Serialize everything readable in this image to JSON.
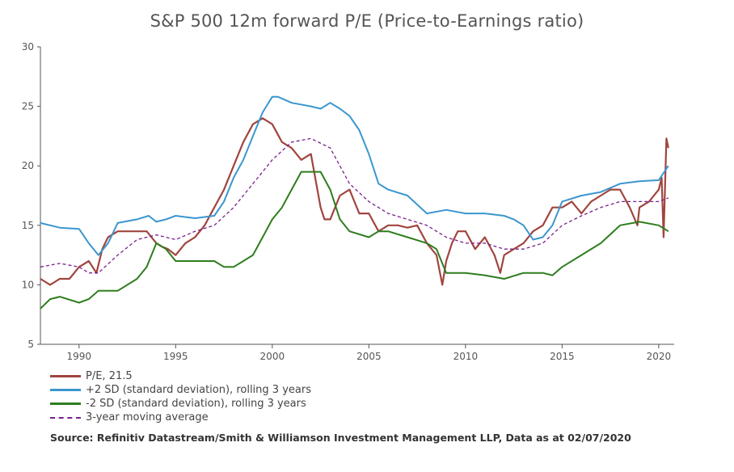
{
  "colors": {
    "pe": "#a0453f",
    "upper": "#3b96cf",
    "lower": "#2e7d1e",
    "avg": "#7b1f8e",
    "axis": "#555555"
  },
  "chart_data": {
    "type": "line",
    "title": "S&P 500 12m forward P/E (Price-to-Earnings ratio)",
    "xlim": [
      1988,
      2020.8
    ],
    "ylim": [
      5,
      30
    ],
    "x_ticks": [
      1990,
      1995,
      2000,
      2005,
      2010,
      2015,
      2020
    ],
    "y_ticks": [
      5,
      10,
      15,
      20,
      25,
      30
    ],
    "grid": false,
    "legend_position": "bottom-left",
    "series": [
      {
        "name": "P/E, 21.5",
        "style": "solid",
        "color_key": "pe",
        "x": [
          1988.0,
          1988.5,
          1989.0,
          1989.5,
          1990.0,
          1990.5,
          1990.9,
          1991.2,
          1991.5,
          1992.0,
          1992.5,
          1993.0,
          1993.5,
          1994.0,
          1994.3,
          1994.6,
          1995.0,
          1995.5,
          1996.0,
          1996.5,
          1997.0,
          1997.5,
          1998.0,
          1998.5,
          1999.0,
          1999.5,
          2000.0,
          2000.5,
          2001.0,
          2001.5,
          2002.0,
          2002.5,
          2002.7,
          2003.0,
          2003.5,
          2004.0,
          2004.5,
          2005.0,
          2005.5,
          2006.0,
          2006.5,
          2007.0,
          2007.5,
          2008.0,
          2008.5,
          2008.8,
          2008.9,
          2009.0,
          2009.3,
          2009.6,
          2010.0,
          2010.5,
          2011.0,
          2011.5,
          2011.8,
          2012.0,
          2012.5,
          2013.0,
          2013.5,
          2014.0,
          2014.5,
          2015.0,
          2015.5,
          2016.0,
          2016.5,
          2017.0,
          2017.5,
          2018.0,
          2018.5,
          2018.9,
          2019.0,
          2019.5,
          2020.0,
          2020.15,
          2020.25,
          2020.4,
          2020.5
        ],
        "values": [
          10.5,
          10.0,
          10.5,
          10.5,
          11.5,
          12.0,
          11.0,
          13.0,
          14.0,
          14.5,
          14.5,
          14.5,
          14.5,
          13.5,
          13.2,
          13.0,
          12.5,
          13.5,
          14.0,
          15.0,
          16.5,
          18.0,
          20.0,
          22.0,
          23.5,
          24.0,
          23.5,
          22.0,
          21.5,
          20.5,
          21.0,
          16.5,
          15.5,
          15.5,
          17.5,
          18.0,
          16.0,
          16.0,
          14.5,
          15.0,
          15.0,
          14.8,
          15.0,
          13.5,
          12.5,
          10.0,
          11.0,
          12.0,
          13.5,
          14.5,
          14.5,
          13.0,
          14.0,
          12.5,
          11.0,
          12.5,
          13.0,
          13.5,
          14.5,
          15.0,
          16.5,
          16.5,
          17.0,
          16.0,
          17.0,
          17.5,
          18.0,
          18.0,
          16.5,
          15.0,
          16.5,
          17.0,
          18.0,
          19.0,
          14.0,
          22.3,
          21.5
        ]
      },
      {
        "name": "+2 SD (standard deviation), rolling 3 years",
        "style": "solid",
        "color_key": "upper",
        "x": [
          1988.0,
          1989.0,
          1990.0,
          1990.5,
          1991.0,
          1991.5,
          1992.0,
          1993.0,
          1993.6,
          1994.0,
          1994.5,
          1995.0,
          1996.0,
          1997.0,
          1997.5,
          1998.0,
          1998.5,
          1999.0,
          1999.5,
          2000.0,
          2000.3,
          2001.0,
          2002.0,
          2002.5,
          2003.0,
          2003.5,
          2004.0,
          2004.5,
          2005.0,
          2005.5,
          2006.0,
          2007.0,
          2008.0,
          2009.0,
          2010.0,
          2011.0,
          2012.0,
          2012.5,
          2013.0,
          2013.5,
          2014.0,
          2014.5,
          2015.0,
          2016.0,
          2017.0,
          2018.0,
          2019.0,
          2020.0,
          2020.5
        ],
        "values": [
          15.2,
          14.8,
          14.7,
          13.5,
          12.5,
          13.5,
          15.2,
          15.5,
          15.8,
          15.3,
          15.5,
          15.8,
          15.6,
          15.8,
          17.0,
          19.0,
          20.5,
          22.5,
          24.5,
          25.8,
          25.8,
          25.3,
          25.0,
          24.8,
          25.3,
          24.8,
          24.2,
          23.0,
          21.0,
          18.5,
          18.0,
          17.5,
          16.0,
          16.3,
          16.0,
          16.0,
          15.8,
          15.5,
          15.0,
          13.8,
          14.0,
          15.0,
          17.0,
          17.5,
          17.8,
          18.5,
          18.7,
          18.8,
          20.0
        ]
      },
      {
        "name": "-2 SD (standard deviation), rolling 3 years",
        "style": "solid",
        "color_key": "lower",
        "x": [
          1988.0,
          1988.5,
          1989.0,
          1990.0,
          1990.5,
          1991.0,
          1991.5,
          1992.0,
          1993.0,
          1993.5,
          1994.0,
          1994.5,
          1995.0,
          1996.0,
          1997.0,
          1997.5,
          1998.0,
          1998.5,
          1999.0,
          1999.5,
          2000.0,
          2000.5,
          2001.0,
          2001.5,
          2002.0,
          2002.5,
          2003.0,
          2003.5,
          2004.0,
          2005.0,
          2005.5,
          2006.0,
          2007.0,
          2008.0,
          2008.5,
          2009.0,
          2010.0,
          2011.0,
          2012.0,
          2013.0,
          2014.0,
          2014.5,
          2015.0,
          2016.0,
          2017.0,
          2018.0,
          2019.0,
          2020.0,
          2020.5
        ],
        "values": [
          8.0,
          8.8,
          9.0,
          8.5,
          8.8,
          9.5,
          9.5,
          9.5,
          10.5,
          11.5,
          13.5,
          13.0,
          12.0,
          12.0,
          12.0,
          11.5,
          11.5,
          12.0,
          12.5,
          14.0,
          15.5,
          16.5,
          18.0,
          19.5,
          19.5,
          19.5,
          18.0,
          15.5,
          14.5,
          14.0,
          14.5,
          14.5,
          14.0,
          13.5,
          13.0,
          11.0,
          11.0,
          10.8,
          10.5,
          11.0,
          11.0,
          10.8,
          11.5,
          12.5,
          13.5,
          15.0,
          15.3,
          15.0,
          14.5
        ]
      },
      {
        "name": "3-year moving average",
        "style": "dashed",
        "color_key": "avg",
        "x": [
          1988.0,
          1989.0,
          1990.0,
          1990.5,
          1991.0,
          1992.0,
          1993.0,
          1994.0,
          1995.0,
          1996.0,
          1997.0,
          1998.0,
          1999.0,
          2000.0,
          2001.0,
          2002.0,
          2003.0,
          2004.0,
          2005.0,
          2006.0,
          2007.0,
          2008.0,
          2009.0,
          2010.0,
          2011.0,
          2012.0,
          2013.0,
          2014.0,
          2015.0,
          2016.0,
          2017.0,
          2018.0,
          2019.0,
          2020.0,
          2020.5
        ],
        "values": [
          11.5,
          11.8,
          11.5,
          11.0,
          11.0,
          12.5,
          13.8,
          14.2,
          13.8,
          14.5,
          15.0,
          16.5,
          18.5,
          20.5,
          22.0,
          22.3,
          21.5,
          18.5,
          17.0,
          16.0,
          15.5,
          15.0,
          14.0,
          13.5,
          13.5,
          13.0,
          13.0,
          13.5,
          15.0,
          15.8,
          16.5,
          17.0,
          17.0,
          17.0,
          17.3
        ]
      }
    ]
  },
  "legend": [
    {
      "label": "P/E, 21.5",
      "color_key": "pe",
      "style": "solid"
    },
    {
      "label": "+2 SD (standard deviation), rolling 3 years",
      "color_key": "upper",
      "style": "solid"
    },
    {
      "label": "-2 SD (standard deviation), rolling 3 years",
      "color_key": "lower",
      "style": "solid"
    },
    {
      "label": "3-year moving average",
      "color_key": "avg",
      "style": "dashed"
    }
  ],
  "source": "Source: Refinitiv Datastream/Smith & Williamson Investment Management LLP, Data as at 02/07/2020"
}
